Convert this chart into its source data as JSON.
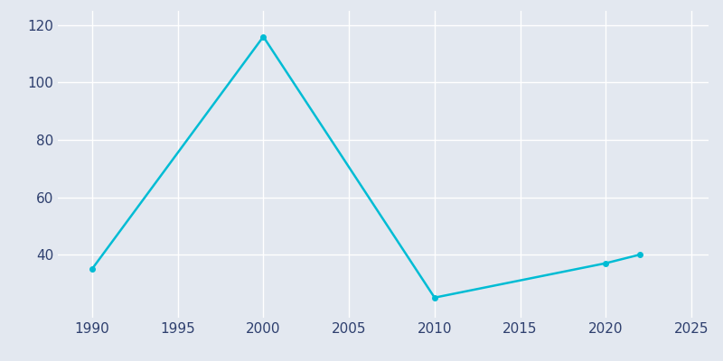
{
  "years": [
    1990,
    2000,
    2010,
    2020,
    2022
  ],
  "population": [
    35,
    116,
    25,
    37,
    40
  ],
  "line_color": "#00bcd4",
  "marker": "o",
  "marker_size": 4,
  "bg_color": "#e3e8f0",
  "grid_color": "#ffffff",
  "tick_color": "#2e3f6e",
  "xlim": [
    1988,
    2026
  ],
  "ylim": [
    18,
    125
  ],
  "xticks": [
    1990,
    1995,
    2000,
    2005,
    2010,
    2015,
    2020,
    2025
  ],
  "yticks": [
    40,
    60,
    80,
    100,
    120
  ],
  "figsize": [
    8.0,
    4.0
  ],
  "dpi": 100
}
